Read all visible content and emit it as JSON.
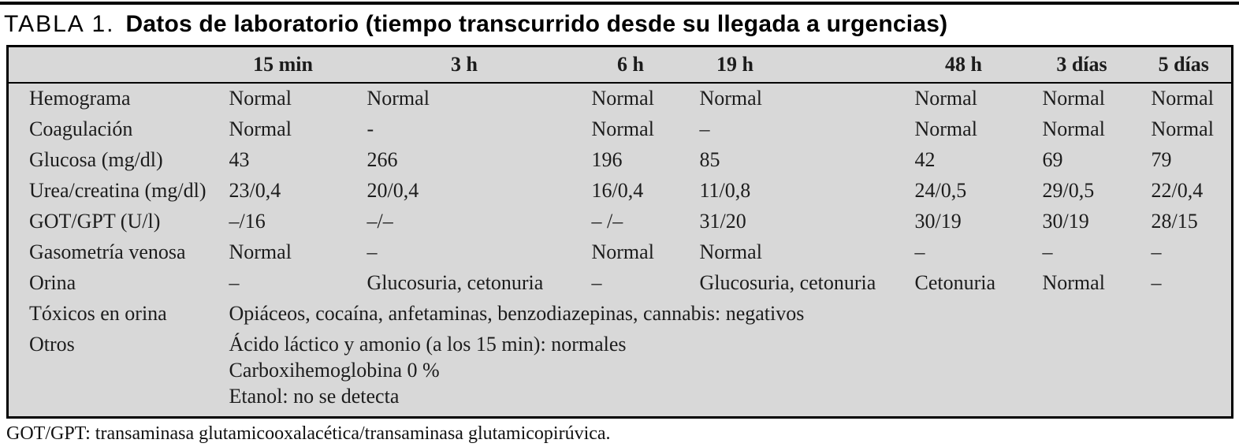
{
  "title": {
    "prefix": "TABLA 1.",
    "text": "Datos de laboratorio (tiempo transcurrido desde su llegada a urgencias)"
  },
  "table": {
    "columns": [
      "",
      "15 min",
      "3 h",
      "6 h",
      "19 h",
      "48 h",
      "3 días",
      "5 días"
    ],
    "rows": [
      {
        "label": "Hemograma",
        "values": [
          "Normal",
          "Normal",
          "Normal",
          "Normal",
          "Normal",
          "Normal",
          "Normal"
        ]
      },
      {
        "label": "Coagulación",
        "values": [
          "Normal",
          "-",
          "Normal",
          "–",
          "Normal",
          "Normal",
          "Normal"
        ]
      },
      {
        "label": "Glucosa (mg/dl)",
        "values": [
          "43",
          "266",
          "196",
          "85",
          "42",
          "69",
          "79"
        ]
      },
      {
        "label": "Urea/creatina (mg/dl)",
        "values": [
          "23/0,4",
          "20/0,4",
          "16/0,4",
          "11/0,8",
          "24/0,5",
          "29/0,5",
          "22/0,4"
        ]
      },
      {
        "label": "GOT/GPT (U/l)",
        "values": [
          "–/16",
          "–/–",
          "– /–",
          "31/20",
          "30/19",
          "30/19",
          "28/15"
        ]
      },
      {
        "label": "Gasometría venosa",
        "values": [
          "Normal",
          "–",
          "Normal",
          "Normal",
          "–",
          "–",
          "–"
        ]
      },
      {
        "label": "Orina",
        "values": [
          "–",
          "Glucosuria, cetonuria",
          "–",
          "Glucosuria, cetonuria",
          "Cetonuria",
          "Normal",
          "–"
        ]
      }
    ],
    "span_rows": [
      {
        "label": "Tóxicos en orina",
        "lines": [
          "Opiáceos, cocaína, anfetaminas, benzodiazepinas, cannabis: negativos"
        ]
      },
      {
        "label": "Otros",
        "lines": [
          "Ácido láctico y amonio (a los 15 min): normales",
          "Carboxihemoglobina 0 %",
          "Etanol: no se detecta"
        ]
      }
    ]
  },
  "footnote": "GOT/GPT: transaminasa glutamicooxalacética/transaminasa glutamicopirúvica.",
  "colors": {
    "table_bg": "#d8d8d8",
    "rule": "#000000",
    "text": "#1a1a1a"
  }
}
